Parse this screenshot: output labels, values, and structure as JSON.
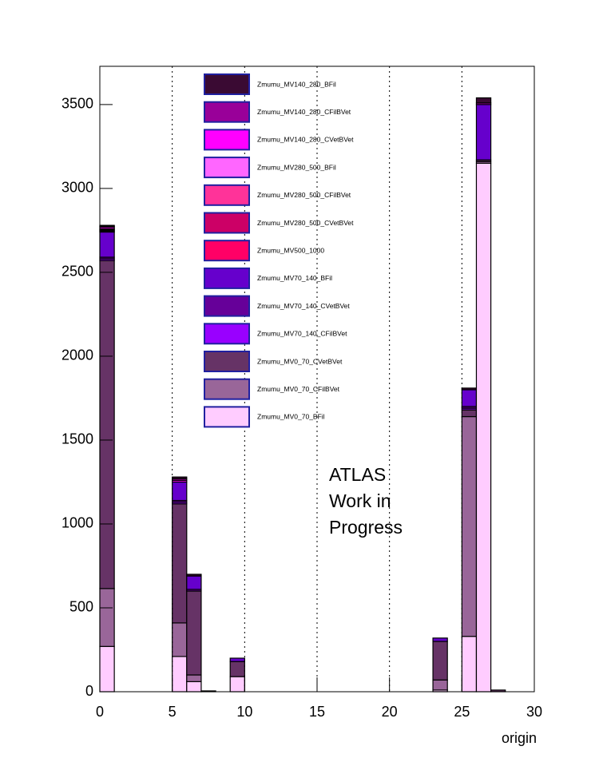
{
  "chart_data": {
    "type": "histogram",
    "bins": [
      0,
      1,
      2,
      3,
      4,
      5,
      6,
      7,
      8,
      9,
      10,
      11,
      12,
      13,
      14,
      15,
      16,
      17,
      18,
      19,
      20,
      21,
      22,
      23,
      24,
      25,
      26,
      27,
      28,
      29,
      30
    ],
    "stacked": true,
    "xlabel": "origin",
    "annotation": [
      "ATLAS",
      "Work in",
      "Progress"
    ],
    "xlim": [
      0,
      30
    ],
    "xticks": [
      0,
      5,
      10,
      15,
      20,
      25,
      30
    ],
    "ylim": [
      0,
      3728
    ],
    "yticks": [
      0,
      500,
      1000,
      1500,
      2000,
      2500,
      3000,
      3500
    ],
    "grid": "x-dotted",
    "series": [
      {
        "name": "Zmumu_MV0_70_BFil",
        "color": "#ffccff",
        "values": [
          270,
          0,
          0,
          0,
          0,
          210,
          60,
          0,
          0,
          90,
          0,
          0,
          0,
          0,
          0,
          0,
          0,
          0,
          0,
          0,
          0,
          0,
          0,
          10,
          0,
          330,
          3150,
          0,
          0,
          0
        ]
      },
      {
        "name": "Zmumu_MV0_70_CFilBVet",
        "color": "#996699",
        "values": [
          345,
          0,
          0,
          0,
          0,
          200,
          40,
          0,
          0,
          0,
          0,
          0,
          0,
          0,
          0,
          0,
          0,
          0,
          0,
          0,
          0,
          0,
          0,
          60,
          0,
          1310,
          10,
          0,
          0,
          0
        ]
      },
      {
        "name": "Zmumu_MV0_70_CVetBVet",
        "color": "#663366",
        "values": [
          1955,
          0,
          0,
          0,
          0,
          710,
          500,
          5,
          0,
          90,
          0,
          0,
          0,
          0,
          0,
          0,
          0,
          0,
          0,
          0,
          0,
          0,
          0,
          230,
          0,
          40,
          10,
          10,
          0,
          0
        ]
      },
      {
        "name": "Zmumu_MV70_140_CFilBVet",
        "color": "#9900ff",
        "values": [
          10,
          0,
          0,
          0,
          0,
          10,
          0,
          0,
          0,
          0,
          0,
          0,
          0,
          0,
          0,
          0,
          0,
          0,
          0,
          0,
          0,
          0,
          0,
          0,
          0,
          10,
          0,
          0,
          0,
          0
        ]
      },
      {
        "name": "Zmumu_MV70_140_CVetBVet",
        "color": "#660099",
        "values": [
          10,
          0,
          0,
          0,
          0,
          10,
          10,
          0,
          0,
          0,
          0,
          0,
          0,
          0,
          0,
          0,
          0,
          0,
          0,
          0,
          0,
          0,
          0,
          0,
          0,
          10,
          0,
          0,
          0,
          0
        ]
      },
      {
        "name": "Zmumu_MV70_140_BFil",
        "color": "#6600cc",
        "values": [
          150,
          0,
          0,
          0,
          0,
          110,
          80,
          0,
          0,
          20,
          0,
          0,
          0,
          0,
          0,
          0,
          0,
          0,
          0,
          0,
          0,
          0,
          0,
          20,
          0,
          100,
          330,
          0,
          0,
          0
        ]
      },
      {
        "name": "Zmumu_MV500_1000",
        "color": "#ff0066",
        "values": [
          5,
          0,
          0,
          0,
          0,
          0,
          0,
          0,
          0,
          0,
          0,
          0,
          0,
          0,
          0,
          0,
          0,
          0,
          0,
          0,
          0,
          0,
          0,
          0,
          0,
          0,
          0,
          0,
          0,
          0
        ]
      },
      {
        "name": "Zmumu_MV280_500_CVetBVet",
        "color": "#cc0066",
        "values": [
          5,
          0,
          0,
          0,
          0,
          0,
          0,
          0,
          0,
          0,
          0,
          0,
          0,
          0,
          0,
          0,
          0,
          0,
          0,
          0,
          0,
          0,
          0,
          0,
          0,
          0,
          0,
          0,
          0,
          0
        ]
      },
      {
        "name": "Zmumu_MV280_500_CFilBVet",
        "color": "#ff3399",
        "values": [
          5,
          0,
          0,
          0,
          0,
          0,
          0,
          0,
          0,
          0,
          0,
          0,
          0,
          0,
          0,
          0,
          0,
          0,
          0,
          0,
          0,
          0,
          0,
          0,
          0,
          0,
          0,
          0,
          0,
          0
        ]
      },
      {
        "name": "Zmumu_MV280_500_BFil",
        "color": "#ff66ff",
        "values": [
          5,
          0,
          0,
          0,
          0,
          0,
          0,
          0,
          0,
          0,
          0,
          0,
          0,
          0,
          0,
          0,
          0,
          0,
          0,
          0,
          0,
          0,
          0,
          0,
          0,
          0,
          0,
          0,
          0,
          0
        ]
      },
      {
        "name": "Zmumu_MV140_280_CVetBVet",
        "color": "#ff00ff",
        "values": [
          10,
          0,
          0,
          0,
          0,
          10,
          0,
          0,
          0,
          0,
          0,
          0,
          0,
          0,
          0,
          0,
          0,
          0,
          0,
          0,
          0,
          0,
          0,
          0,
          0,
          0,
          0,
          0,
          0,
          0
        ]
      },
      {
        "name": "Zmumu_MV140_280_CFilBVet",
        "color": "#990099",
        "values": [
          5,
          0,
          0,
          0,
          0,
          10,
          0,
          0,
          0,
          0,
          0,
          0,
          0,
          0,
          0,
          0,
          0,
          0,
          0,
          0,
          0,
          0,
          0,
          0,
          0,
          0,
          10,
          0,
          0,
          0
        ]
      },
      {
        "name": "Zmumu_MV140_280_BFil",
        "color": "#3a0a33",
        "values": [
          5,
          0,
          0,
          0,
          0,
          10,
          10,
          0,
          0,
          0,
          0,
          0,
          0,
          0,
          0,
          0,
          0,
          0,
          0,
          0,
          0,
          0,
          0,
          0,
          0,
          10,
          30,
          0,
          0,
          0
        ]
      }
    ]
  }
}
